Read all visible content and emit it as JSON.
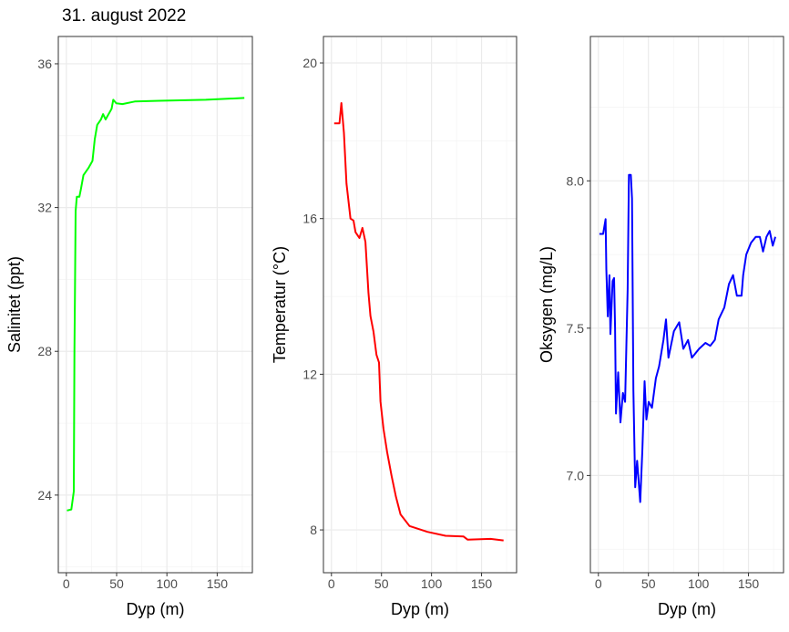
{
  "title": "31. august 2022",
  "chart_data": [
    {
      "type": "line",
      "xlabel": "Dyp (m)",
      "ylabel": "Salinitet (ppt)",
      "xlim": [
        -8,
        185
      ],
      "ylim": [
        21.84,
        36.76
      ],
      "xticks": [
        0,
        50,
        100,
        150
      ],
      "yticks": [
        24,
        28,
        32,
        36
      ],
      "ytick_labels": [
        "24",
        "28",
        "32",
        "36"
      ],
      "grid": true,
      "color": "#00ff00",
      "x": [
        0.6,
        5,
        7.4,
        8,
        8.6,
        9.2,
        10.4,
        12.9,
        14.4,
        17,
        22,
        26,
        28.2,
        30.7,
        34.4,
        36.5,
        39,
        45,
        46.6,
        49.7,
        55.8,
        68,
        92.6,
        138.7,
        177
      ],
      "y": [
        23.57,
        23.6,
        24.1,
        28,
        29.7,
        31.9,
        32.3,
        32.3,
        32.5,
        32.9,
        33.1,
        33.3,
        33.9,
        34.3,
        34.45,
        34.6,
        34.45,
        34.75,
        35.0,
        34.9,
        34.88,
        34.95,
        34.97,
        35.0,
        35.05
      ]
    },
    {
      "type": "line",
      "xlabel": "Dyp (m)",
      "ylabel": "Temperatur (°C)",
      "xlim": [
        -8,
        185
      ],
      "ylim": [
        6.9,
        20.68
      ],
      "xticks": [
        0,
        50,
        100,
        150
      ],
      "yticks": [
        8,
        12,
        16,
        20
      ],
      "ytick_labels": [
        "8",
        "12",
        "16",
        "20"
      ],
      "grid": true,
      "color": "#ff0000",
      "x": [
        2.7,
        8,
        9.9,
        12.5,
        15,
        19,
        22,
        24,
        28,
        31,
        34,
        37,
        39,
        42,
        45,
        47.5,
        49,
        52,
        55.6,
        60,
        64.5,
        69,
        78,
        96,
        114,
        132,
        136,
        159,
        172
      ],
      "y": [
        18.45,
        18.45,
        18.97,
        18.2,
        16.9,
        16.0,
        15.95,
        15.65,
        15.5,
        15.76,
        15.4,
        14.1,
        13.5,
        13.1,
        12.5,
        12.3,
        11.3,
        10.6,
        10.0,
        9.4,
        8.85,
        8.4,
        8.1,
        7.95,
        7.85,
        7.83,
        7.75,
        7.77,
        7.73
      ]
    },
    {
      "type": "line",
      "xlabel": "Dyp (m)",
      "ylabel": "Oksygen (mg/L)",
      "xlim": [
        -8,
        185
      ],
      "ylim": [
        6.67,
        8.49
      ],
      "xticks": [
        0,
        50,
        100,
        150
      ],
      "yticks": [
        7.0,
        7.5,
        8.0
      ],
      "ytick_labels": [
        "7.0",
        "7.5",
        "8.0"
      ],
      "grid": true,
      "color": "#0000ff",
      "x": [
        1,
        4.7,
        7.2,
        7.9,
        9.4,
        11,
        12,
        14.2,
        15.7,
        16.7,
        17.6,
        19.8,
        22,
        24.5,
        26.7,
        29.2,
        30.5,
        32.4,
        33.6,
        35,
        36.8,
        38.7,
        41.8,
        44,
        46.2,
        48,
        50.3,
        53.5,
        57.5,
        60.6,
        65,
        67.6,
        70,
        75.5,
        80.8,
        84.9,
        89.6,
        93.4,
        100.6,
        107,
        111.7,
        116.4,
        120.2,
        125.8,
        130.5,
        134.6,
        138.4,
        143,
        144.7,
        147.8,
        152.5,
        157.2,
        161.3,
        164.5,
        168,
        171.2,
        174.3,
        176.8
      ],
      "y": [
        7.82,
        7.82,
        7.87,
        7.7,
        7.54,
        7.68,
        7.48,
        7.66,
        7.67,
        7.5,
        7.21,
        7.35,
        7.18,
        7.28,
        7.25,
        7.63,
        8.02,
        8.02,
        7.94,
        7.29,
        6.96,
        7.05,
        6.91,
        7.09,
        7.32,
        7.19,
        7.25,
        7.23,
        7.33,
        7.37,
        7.46,
        7.53,
        7.4,
        7.49,
        7.52,
        7.43,
        7.46,
        7.4,
        7.43,
        7.45,
        7.44,
        7.46,
        7.53,
        7.57,
        7.65,
        7.68,
        7.61,
        7.61,
        7.68,
        7.75,
        7.79,
        7.81,
        7.81,
        7.76,
        7.81,
        7.83,
        7.78,
        7.81
      ]
    }
  ]
}
